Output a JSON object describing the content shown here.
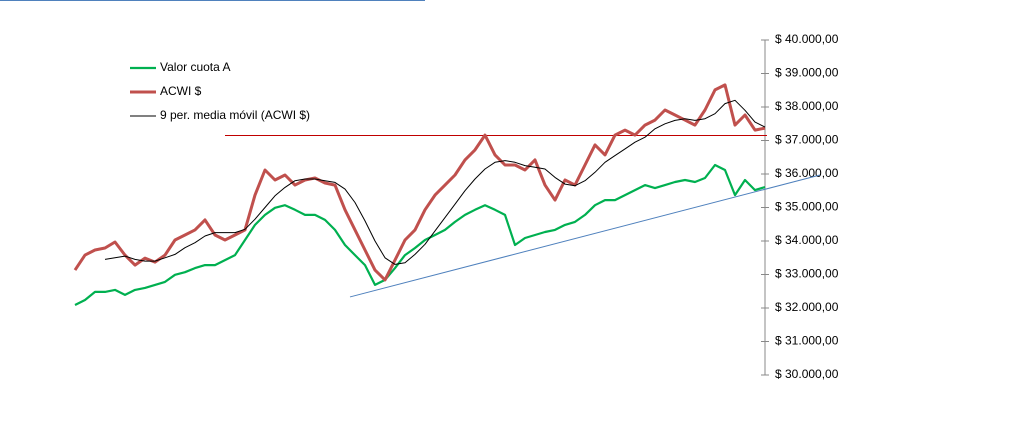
{
  "chart_data": {
    "type": "line",
    "categories": [
      null,
      null,
      null,
      null,
      null,
      null,
      null,
      null,
      null,
      null,
      null,
      null,
      null,
      null,
      null,
      null,
      null,
      null,
      null,
      null,
      null,
      null,
      null,
      null,
      null,
      null,
      null,
      null,
      null,
      null,
      null,
      null,
      null,
      null,
      null,
      null,
      null,
      null,
      null,
      null,
      null,
      null,
      null,
      null,
      null,
      null,
      null,
      null,
      null,
      null,
      null,
      null,
      null,
      null,
      null,
      null,
      null,
      null,
      null,
      null,
      null,
      null,
      null,
      null,
      null,
      null,
      null,
      null,
      null,
      null
    ],
    "series": [
      {
        "name": "Valor cuota A",
        "color": "#00b050",
        "width": 2.2,
        "values": [
          32090,
          32240,
          32480,
          32480,
          32540,
          32390,
          32540,
          32600,
          32690,
          32780,
          32990,
          33070,
          33190,
          33280,
          33280,
          33430,
          33580,
          34030,
          34480,
          34780,
          34990,
          35070,
          34930,
          34780,
          34780,
          34630,
          34330,
          33880,
          33580,
          33280,
          32690,
          32840,
          33190,
          33580,
          33790,
          34030,
          34180,
          34330,
          34570,
          34780,
          34930,
          35070,
          34930,
          34780,
          33880,
          34090,
          34180,
          34270,
          34330,
          34480,
          34570,
          34780,
          35070,
          35220,
          35220,
          35370,
          35520,
          35670,
          35580,
          35670,
          35760,
          35820,
          35760,
          35880,
          36270,
          36120,
          35370,
          35820,
          35520,
          35610
        ]
      },
      {
        "name": "ACWI $",
        "color": "#c0504d",
        "width": 3,
        "values": [
          33130,
          33580,
          33730,
          33790,
          33970,
          33580,
          33280,
          33490,
          33370,
          33580,
          34030,
          34180,
          34330,
          34630,
          34180,
          34030,
          34180,
          34330,
          35370,
          36120,
          35820,
          35970,
          35670,
          35820,
          35880,
          35730,
          35670,
          34930,
          34330,
          33730,
          33130,
          32840,
          33430,
          34030,
          34330,
          34930,
          35370,
          35670,
          35970,
          36420,
          36720,
          37160,
          36570,
          36270,
          36270,
          36120,
          36420,
          35670,
          35220,
          35820,
          35670,
          36270,
          36870,
          36570,
          37160,
          37310,
          37160,
          37460,
          37610,
          37910,
          37760,
          37610,
          37460,
          37910,
          38510,
          38660,
          37460,
          37760,
          37310,
          37370
        ]
      },
      {
        "name": "9 per. media móvil (ACWI $)",
        "color": "#000000",
        "width": 1,
        "values": [
          null,
          null,
          null,
          33450,
          33500,
          33550,
          33450,
          33400,
          33400,
          33500,
          33600,
          33800,
          33950,
          34150,
          34250,
          34250,
          34250,
          34350,
          34650,
          35000,
          35350,
          35600,
          35800,
          35850,
          35850,
          35800,
          35750,
          35550,
          35150,
          34600,
          34000,
          33500,
          33300,
          33350,
          33600,
          33900,
          34300,
          34700,
          35100,
          35500,
          35850,
          36150,
          36350,
          36400,
          36350,
          36250,
          36200,
          36150,
          35900,
          35700,
          35650,
          35800,
          36050,
          36350,
          36550,
          36750,
          36950,
          37100,
          37350,
          37500,
          37600,
          37650,
          37600,
          37650,
          37800,
          38100,
          38200,
          37900,
          37550,
          37400
        ]
      }
    ],
    "reference_lines": [
      {
        "color": "#c00000",
        "x": [
          15,
          69.2
        ],
        "y": [
          37150,
          37150
        ]
      },
      {
        "color": "#4f81bd",
        "x": [
          27.5,
          74.5
        ],
        "y": [
          32330,
          35970
        ]
      }
    ],
    "ylim": [
      30000,
      40000
    ],
    "yticks": [
      {
        "value": 30000,
        "label": "$ 30.000,00"
      },
      {
        "value": 31000,
        "label": "$ 31.000,00"
      },
      {
        "value": 32000,
        "label": "$ 32.000,00"
      },
      {
        "value": 33000,
        "label": "$ 33.000,00"
      },
      {
        "value": 34000,
        "label": "$ 34.000,00"
      },
      {
        "value": 35000,
        "label": "$ 35.000,00"
      },
      {
        "value": 36000,
        "label": "$ 36.000,00"
      },
      {
        "value": 37000,
        "label": "$ 37.000,00"
      },
      {
        "value": 38000,
        "label": "$ 38.000,00"
      },
      {
        "value": 39000,
        "label": "$ 39.000,00"
      },
      {
        "value": 40000,
        "label": "$ 40.000,00"
      }
    ],
    "y_axis_side": "right",
    "legend": "top-left"
  }
}
